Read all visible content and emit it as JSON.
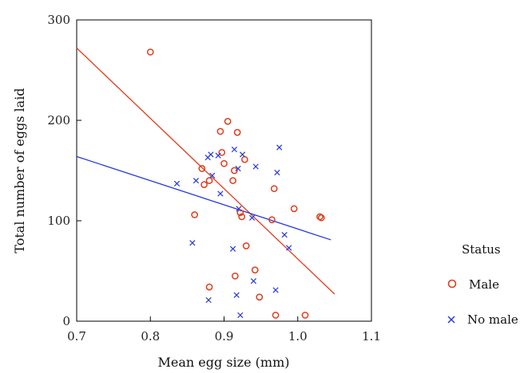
{
  "chart_data": {
    "type": "scatter",
    "xlabel": "Mean egg size (mm)",
    "ylabel": "Total number of eggs laid",
    "xlim": [
      0.7,
      1.1
    ],
    "ylim": [
      0,
      300
    ],
    "xticks": [
      "0.7",
      "0.8",
      "0.9",
      "1.0",
      "1.1"
    ],
    "yticks": [
      "0",
      "100",
      "200",
      "300"
    ],
    "grid": false,
    "legend": {
      "title": "Status",
      "placement": "right",
      "entries": [
        "Male",
        "No male"
      ]
    },
    "series": [
      {
        "name": "Male",
        "marker": "circle",
        "color": "#e03c1c",
        "points": [
          [
            0.8,
            268
          ],
          [
            0.86,
            106
          ],
          [
            0.87,
            152
          ],
          [
            0.873,
            136
          ],
          [
            0.88,
            140
          ],
          [
            0.88,
            34
          ],
          [
            0.895,
            189
          ],
          [
            0.897,
            168
          ],
          [
            0.9,
            157
          ],
          [
            0.905,
            199
          ],
          [
            0.912,
            140
          ],
          [
            0.914,
            150
          ],
          [
            0.915,
            45
          ],
          [
            0.918,
            188
          ],
          [
            0.922,
            108
          ],
          [
            0.924,
            104
          ],
          [
            0.928,
            161
          ],
          [
            0.93,
            75
          ],
          [
            0.942,
            51
          ],
          [
            0.948,
            24
          ],
          [
            0.965,
            101
          ],
          [
            0.968,
            132
          ],
          [
            0.97,
            6
          ],
          [
            0.995,
            112
          ],
          [
            1.01,
            6
          ],
          [
            1.03,
            104
          ],
          [
            1.032,
            103
          ]
        ],
        "trend": {
          "x": [
            0.7,
            1.05
          ],
          "y": [
            272,
            27
          ]
        }
      },
      {
        "name": "No male",
        "marker": "x",
        "color": "#2438e0",
        "points": [
          [
            0.836,
            137
          ],
          [
            0.857,
            78
          ],
          [
            0.862,
            140
          ],
          [
            0.878,
            163
          ],
          [
            0.879,
            21
          ],
          [
            0.882,
            166
          ],
          [
            0.884,
            145
          ],
          [
            0.892,
            165
          ],
          [
            0.895,
            127
          ],
          [
            0.912,
            72
          ],
          [
            0.914,
            171
          ],
          [
            0.917,
            26
          ],
          [
            0.919,
            152
          ],
          [
            0.92,
            112
          ],
          [
            0.922,
            6
          ],
          [
            0.925,
            166
          ],
          [
            0.938,
            103
          ],
          [
            0.94,
            40
          ],
          [
            0.943,
            154
          ],
          [
            0.97,
            31
          ],
          [
            0.972,
            148
          ],
          [
            0.975,
            173
          ],
          [
            0.982,
            86
          ],
          [
            0.988,
            73
          ]
        ],
        "trend": {
          "x": [
            0.7,
            1.045
          ],
          "y": [
            164,
            81
          ]
        }
      }
    ]
  }
}
